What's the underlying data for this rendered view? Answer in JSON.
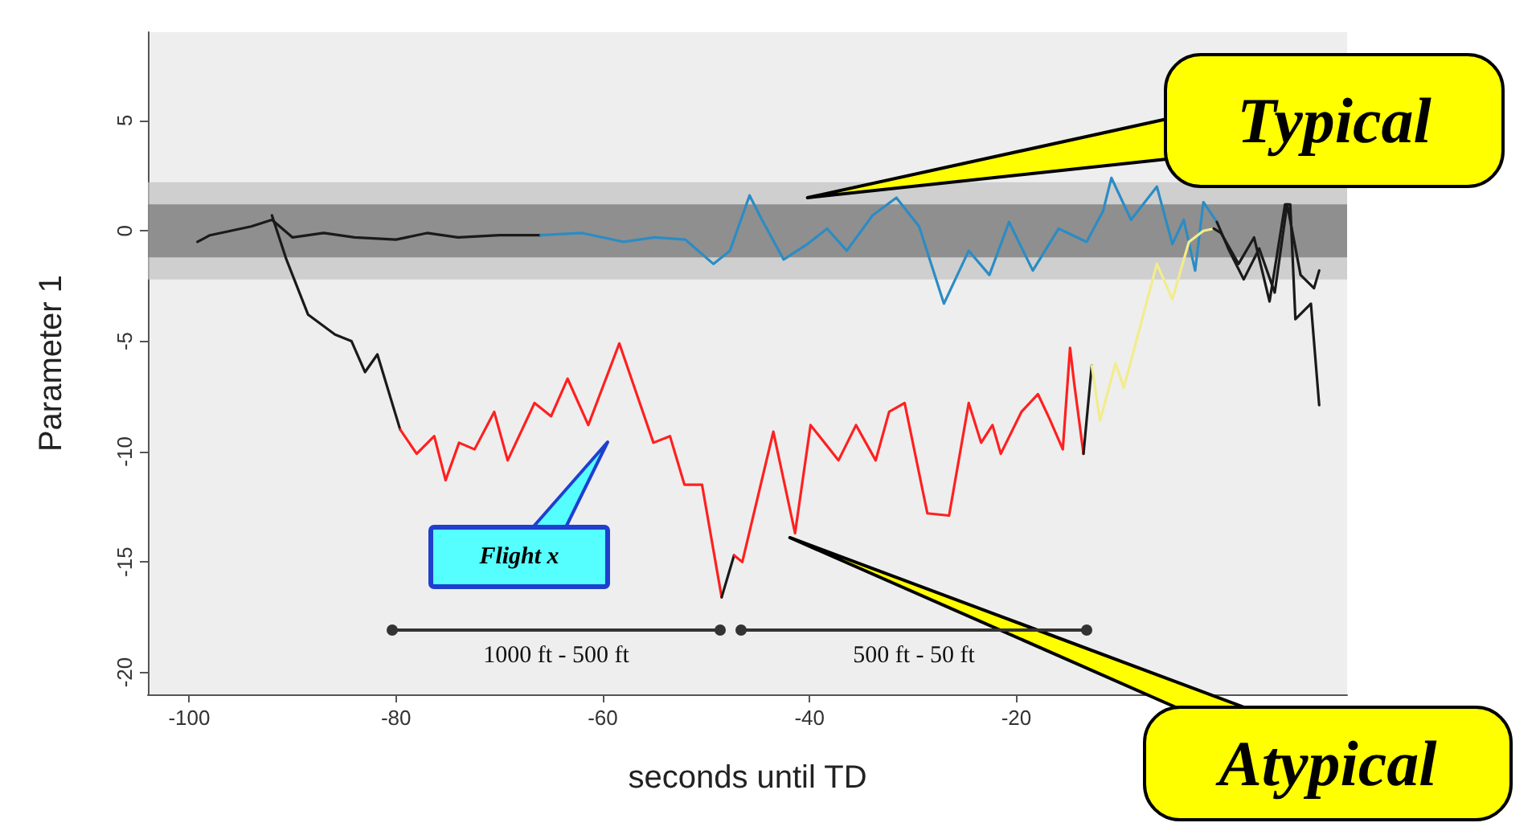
{
  "chart_data": {
    "type": "line",
    "xlabel": "seconds until TD",
    "ylabel": "Parameter 1",
    "xlim": [
      -104,
      12
    ],
    "xticks": [
      -100,
      -80,
      -60,
      -40,
      -20
    ],
    "ylim": [
      -21,
      9
    ],
    "yticks": [
      5,
      0,
      -5,
      -10,
      -15,
      -20
    ],
    "marker": "none",
    "series": [
      {
        "color": "#1a1a1a",
        "x": [
          -99.2,
          -98,
          -96,
          -94,
          -92,
          -90,
          -87,
          -84,
          -80,
          -77,
          -74,
          -70,
          -66
        ],
        "values": [
          -0.5,
          -0.2,
          0,
          0.2,
          0.5,
          -0.3,
          -0.1,
          -0.3,
          -0.4,
          -0.1,
          -0.3,
          -0.2,
          -0.2
        ]
      },
      {
        "color": "#2b8cc4",
        "x": [
          -66,
          -62,
          -58,
          -55,
          -52,
          -49.3,
          -47.7,
          -45.8,
          -44.6,
          -42.5,
          -40.2,
          -38.3,
          -36.4,
          -33.9,
          -31.6,
          -29.4,
          -27,
          -24.6,
          -22.6,
          -20.7,
          -18.4,
          -15.9,
          -13.2,
          -11.6,
          -10.8,
          -8.9,
          -6.4,
          -4.9,
          -3.8,
          -2.7,
          -1.9,
          -0.6
        ],
        "values": [
          -0.2,
          -0.1,
          -0.5,
          -0.3,
          -0.4,
          -1.5,
          -0.9,
          1.6,
          0.5,
          -1.3,
          -0.6,
          0.1,
          -0.9,
          0.7,
          1.5,
          0.2,
          -3.3,
          -0.9,
          -2,
          0.4,
          -1.8,
          0.1,
          -0.5,
          0.9,
          2.4,
          0.5,
          2,
          -0.6,
          0.5,
          -1.8,
          1.3,
          0.4
        ]
      },
      {
        "color": "#1a1a1a",
        "x": [
          -0.6,
          0.5,
          2,
          3.5,
          5,
          6.2,
          7.5,
          8.8,
          9.3
        ],
        "values": [
          0.4,
          -0.8,
          -2.2,
          -0.8,
          -2.8,
          1.2,
          -2,
          -2.6,
          -1.8
        ]
      },
      {
        "color": "#1a1a1a",
        "x": [
          -92,
          -90.6,
          -88.5,
          -85.9,
          -84.3,
          -83,
          -81.8,
          -79.6
        ],
        "values": [
          0.7,
          -1.3,
          -3.8,
          -4.7,
          -5,
          -6.4,
          -5.6,
          -9
        ]
      },
      {
        "color": "#ff2020",
        "x": [
          -79.6,
          -78,
          -76.3,
          -75.2,
          -73.9,
          -72.4,
          -70.5,
          -69.2,
          -66.6,
          -65,
          -63.4,
          -61.4,
          -58.4,
          -55.1,
          -53.5,
          -52.1,
          -50.4,
          -48.5
        ],
        "values": [
          -9,
          -10.1,
          -9.3,
          -11.3,
          -9.6,
          -9.9,
          -8.2,
          -10.4,
          -7.8,
          -8.4,
          -6.7,
          -8.8,
          -5.1,
          -9.6,
          -9.3,
          -11.5,
          -11.5,
          -16.6
        ]
      },
      {
        "color": "#1a1a1a",
        "x": [
          -48.5,
          -47.3
        ],
        "values": [
          -16.6,
          -14.7
        ]
      },
      {
        "color": "#ff2020",
        "x": [
          -47.3,
          -46.5,
          -43.5,
          -41.4,
          -39.9,
          -37.2,
          -35.5,
          -33.6,
          -32.3,
          -30.8,
          -28.6,
          -26.5,
          -24.6,
          -23.4,
          -22.3,
          -21.5,
          -19.5,
          -17.9,
          -16.8,
          -15.5,
          -14.8,
          -14.4,
          -13.5
        ],
        "values": [
          -14.7,
          -15,
          -9.1,
          -13.7,
          -8.8,
          -10.4,
          -8.8,
          -10.4,
          -8.2,
          -7.8,
          -12.8,
          -12.9,
          -7.8,
          -9.6,
          -8.8,
          -10.1,
          -8.2,
          -7.4,
          -8.5,
          -9.9,
          -5.3,
          -6.9,
          -10.1
        ]
      },
      {
        "color": "#1a1a1a",
        "x": [
          -13.5,
          -12.7
        ],
        "values": [
          -10.1,
          -6.1
        ]
      },
      {
        "color": "#f2ec8c",
        "x": [
          -12.7,
          -11.9,
          -10.4,
          -9.6,
          -6.4,
          -4.9,
          -3.3,
          -1.9,
          -0.9
        ],
        "values": [
          -6.1,
          -8.6,
          -6,
          -7.1,
          -1.5,
          -3.1,
          -0.5,
          0,
          0.1
        ]
      },
      {
        "color": "#1a1a1a",
        "x": [
          -0.9,
          -0.2,
          1.5,
          3,
          4.5,
          6,
          6.5,
          7,
          8.5,
          9.3
        ],
        "values": [
          0.1,
          -0.1,
          -1.5,
          -0.3,
          -3.2,
          1.2,
          1.2,
          -4,
          -3.3,
          -7.9
        ]
      }
    ],
    "bands": [
      {
        "axis": "y",
        "from": -2.2,
        "to": 2.2,
        "color": "#c4c4c4"
      },
      {
        "axis": "y",
        "from": -1.2,
        "to": 1.2,
        "color": "#7a7a7a"
      }
    ],
    "annotations": [
      {
        "text": "Typical",
        "x": -40.2,
        "y": 1.5
      },
      {
        "text": "Atypical",
        "x": -41.9,
        "y": -13.9
      },
      "Flight x",
      "1000 ft - 500 ft",
      "500 ft - 50 ft"
    ]
  }
}
